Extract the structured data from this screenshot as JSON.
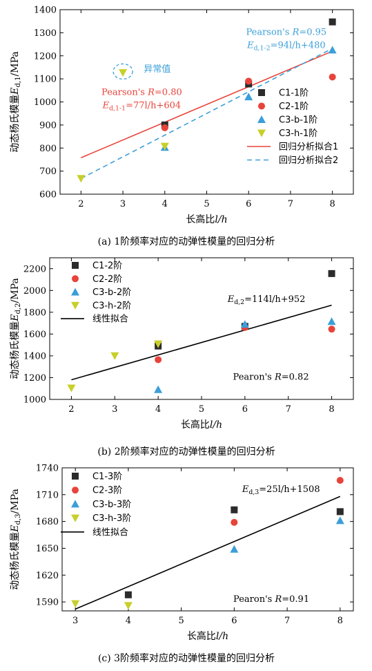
{
  "chart_data": [
    {
      "type": "scatter",
      "caption": "(a) 1阶频率对应的动弹性模量的回归分析",
      "xlabel": "长高比l/h",
      "ylabel": "动态杨氏模量E_d,1/MPa",
      "xlim": [
        1.5,
        8.5
      ],
      "ylim": [
        600,
        1400
      ],
      "xticks": [
        2,
        3,
        4,
        5,
        6,
        7,
        8
      ],
      "yticks": [
        600,
        700,
        800,
        900,
        1000,
        1100,
        1200,
        1300,
        1400
      ],
      "series": [
        {
          "name": "C1-1阶",
          "marker": "square",
          "color": "#2b2b2b",
          "x": [
            4,
            6,
            8
          ],
          "y": [
            900,
            1078,
            1347
          ]
        },
        {
          "name": "C2-1阶",
          "marker": "circle",
          "color": "#e8433a",
          "x": [
            4,
            6,
            8
          ],
          "y": [
            888,
            1090,
            1108
          ]
        },
        {
          "name": "C3-b-1阶",
          "marker": "triangle-up",
          "color": "#3b9fd8",
          "x": [
            4,
            6,
            8
          ],
          "y": [
            803,
            1022,
            1225
          ]
        },
        {
          "name": "C3-h-1阶",
          "marker": "triangle-down",
          "color": "#c8cf2a",
          "x": [
            2,
            3,
            4
          ],
          "y": [
            668,
            1127,
            808
          ]
        }
      ],
      "fits": [
        {
          "name": "回归分析拟合1",
          "color": "#e8433a",
          "dash": false,
          "x": [
            2,
            8
          ],
          "y": [
            758,
            1220
          ]
        },
        {
          "name": "回归分析拟合2",
          "color": "#3b9fd8",
          "dash": true,
          "x": [
            2,
            8
          ],
          "y": [
            668,
            1232
          ]
        }
      ],
      "annotations": [
        {
          "line1": "Pearson's R=0.80",
          "line2": "E_d,1-1=77l/h+604",
          "color": "#e8433a",
          "x": 3.45,
          "y": 1030
        },
        {
          "line1": "Pearson's R=0.95",
          "line2": "E_d,1-2=94l/h+480",
          "color": "#3b9fd8",
          "x": 6.9,
          "y": 1290
        },
        {
          "text": "异常值",
          "color": "#3b9fd8",
          "x": 3.5,
          "y": 1130
        }
      ],
      "outlier": {
        "x": 3,
        "y": 1132
      },
      "legend": "right"
    },
    {
      "type": "scatter",
      "caption": "(b) 2阶频率对应的动弹性模量的回归分析",
      "xlabel": "长高比l/h",
      "ylabel": "动态杨氏模量E_d,2/MPa",
      "xlim": [
        1.5,
        8.5
      ],
      "ylim": [
        1000,
        2300
      ],
      "xticks": [
        2,
        3,
        4,
        5,
        6,
        7,
        8
      ],
      "yticks": [
        1000,
        1200,
        1400,
        1600,
        1800,
        2000,
        2200
      ],
      "series": [
        {
          "name": "C1-2阶",
          "marker": "square",
          "color": "#2b2b2b",
          "x": [
            4,
            6,
            8
          ],
          "y": [
            1490,
            1670,
            2155
          ]
        },
        {
          "name": "C2-2阶",
          "marker": "circle",
          "color": "#e8433a",
          "x": [
            4,
            6,
            8
          ],
          "y": [
            1365,
            1660,
            1645
          ]
        },
        {
          "name": "C3-b-2阶",
          "marker": "triangle-up",
          "color": "#3b9fd8",
          "x": [
            4,
            6,
            8
          ],
          "y": [
            1090,
            1690,
            1715
          ]
        },
        {
          "name": "C3-h-2阶",
          "marker": "triangle-down",
          "color": "#c8cf2a",
          "x": [
            2,
            3,
            4
          ],
          "y": [
            1105,
            1400,
            1510
          ]
        }
      ],
      "fits": [
        {
          "name": "线性拟合",
          "color": "#000000",
          "dash": false,
          "x": [
            2,
            8
          ],
          "y": [
            1180,
            1865
          ]
        }
      ],
      "annotations": [
        {
          "text": "E_d,2=114l/h+952",
          "color": "#000000",
          "x": 5.6,
          "y": 1895
        },
        {
          "text": "Pearon's R=0.82",
          "color": "#000000",
          "x": 6.6,
          "y": 1180
        }
      ],
      "legend": "top-left"
    },
    {
      "type": "scatter",
      "caption": "(c) 3阶频率对应的动弹性模量的回归分析",
      "xlabel": "长高比l/h",
      "ylabel": "动态杨氏模量E_d,3/MPa",
      "xlim": [
        2.75,
        8.25
      ],
      "ylim": [
        1580,
        1740
      ],
      "xticks": [
        3,
        4,
        5,
        6,
        7,
        8
      ],
      "yticks": [
        1590,
        1620,
        1650,
        1680,
        1710,
        1740
      ],
      "series": [
        {
          "name": "C1-3阶",
          "marker": "square",
          "color": "#2b2b2b",
          "x": [
            4,
            6,
            8
          ],
          "y": [
            1598,
            1693,
            1691
          ]
        },
        {
          "name": "C2-3阶",
          "marker": "circle",
          "color": "#e8433a",
          "x": [
            6,
            8
          ],
          "y": [
            1679,
            1726
          ]
        },
        {
          "name": "C3-b-3阶",
          "marker": "triangle-up",
          "color": "#3b9fd8",
          "x": [
            6,
            8
          ],
          "y": [
            1649,
            1681
          ]
        },
        {
          "name": "C3-h-3阶",
          "marker": "triangle-down",
          "color": "#c8cf2a",
          "x": [
            3,
            4
          ],
          "y": [
            1588,
            1586
          ]
        }
      ],
      "fits": [
        {
          "name": "线性拟合",
          "color": "#000000",
          "dash": false,
          "x": [
            3,
            8
          ],
          "y": [
            1582,
            1708
          ]
        }
      ],
      "annotations": [
        {
          "text": "E_d,3=25l/h+1508",
          "color": "#000000",
          "x": 6.15,
          "y": 1713
        },
        {
          "text": "Pearon's R=0.91",
          "color": "#000000",
          "x": 6.7,
          "y": 1590
        }
      ],
      "legend": "top-left"
    }
  ]
}
